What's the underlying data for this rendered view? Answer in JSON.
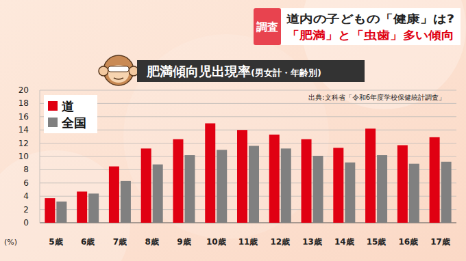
{
  "header": {
    "tag": "調査",
    "lines": [
      "道内の子どもの「健康」は?",
      "「肥満」と「虫歯」多い傾向"
    ]
  },
  "chart_data": {
    "type": "bar",
    "title": "肥満傾向児出現率",
    "subtitle": "(男女計・年齢別)",
    "annotations": [
      "出典:文科省「令和6年度学校保健統計調査」"
    ],
    "y_label": "(%)",
    "categories": [
      "5歳",
      "6歳",
      "7歳",
      "8歳",
      "9歳",
      "10歳",
      "11歳",
      "12歳",
      "13歳",
      "14歳",
      "15歳",
      "16歳",
      "17歳"
    ],
    "series": [
      {
        "name": "道",
        "color": "#e00012",
        "values": [
          3.7,
          4.7,
          8.5,
          11.2,
          12.6,
          15.0,
          14.0,
          13.3,
          12.6,
          11.3,
          14.2,
          11.7,
          12.9
        ]
      },
      {
        "name": "全国",
        "color": "#808080",
        "values": [
          3.2,
          4.4,
          6.3,
          8.8,
          10.2,
          11.0,
          11.6,
          11.2,
          10.1,
          9.1,
          10.2,
          8.9,
          9.2
        ]
      }
    ],
    "ylim": [
      0,
      20
    ],
    "yticks": [
      0,
      2,
      4,
      6,
      8,
      10,
      12,
      14,
      16,
      18,
      20
    ],
    "grid": true,
    "legend": "top-left"
  }
}
